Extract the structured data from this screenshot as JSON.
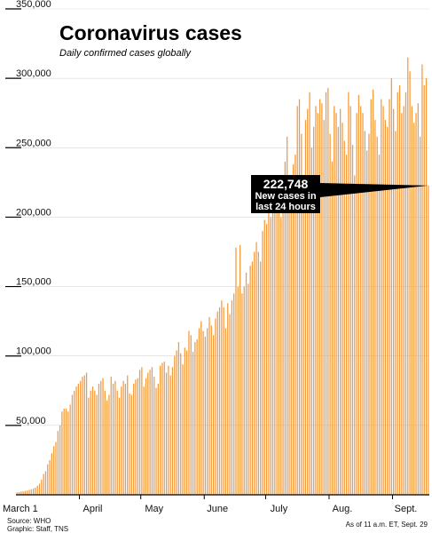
{
  "colors": {
    "bar": "#f59a3c",
    "axis": "#000000",
    "callout_bg": "#000000"
  },
  "chart_data": {
    "type": "bar",
    "title": "Coronavirus cases",
    "subtitle": "Daily confirmed cases globally",
    "ylim": [
      0,
      350000
    ],
    "y_ticks": [
      {
        "value": 50000,
        "label": "50,000"
      },
      {
        "value": 100000,
        "label": "100,000"
      },
      {
        "value": 150000,
        "label": "150,000"
      },
      {
        "value": 200000,
        "label": "200,000"
      },
      {
        "value": 250000,
        "label": "250,000"
      },
      {
        "value": 300000,
        "label": "300,000"
      },
      {
        "value": 350000,
        "label": "350,000"
      }
    ],
    "x_ticks": [
      {
        "day_index": 0,
        "label": "March 1"
      },
      {
        "day_index": 31,
        "label": "April"
      },
      {
        "day_index": 61,
        "label": "May"
      },
      {
        "day_index": 92,
        "label": "June"
      },
      {
        "day_index": 122,
        "label": "July"
      },
      {
        "day_index": 153,
        "label": "Aug."
      },
      {
        "day_index": 184,
        "label": "Sept."
      }
    ],
    "values": [
      1800,
      2000,
      2300,
      2500,
      2800,
      3000,
      3500,
      4000,
      4500,
      5200,
      6500,
      8000,
      11000,
      15000,
      17000,
      22000,
      25000,
      30000,
      35000,
      38000,
      46000,
      50000,
      60000,
      62000,
      62000,
      60000,
      65000,
      72000,
      75000,
      78000,
      80000,
      82000,
      85000,
      86000,
      88000,
      70000,
      75000,
      78000,
      75000,
      72000,
      80000,
      82000,
      84000,
      75000,
      68000,
      72000,
      85000,
      80000,
      82000,
      75000,
      70000,
      78000,
      82000,
      80000,
      86000,
      73000,
      72000,
      80000,
      83000,
      84000,
      90000,
      92000,
      78000,
      84000,
      88000,
      90000,
      92000,
      85000,
      77000,
      80000,
      93000,
      95000,
      96000,
      88000,
      93000,
      86000,
      92000,
      100000,
      104000,
      110000,
      102000,
      94000,
      106000,
      104000,
      118000,
      115000,
      103000,
      110000,
      112000,
      120000,
      125000,
      118000,
      114000,
      120000,
      128000,
      122000,
      115000,
      127000,
      132000,
      135000,
      140000,
      135000,
      120000,
      138000,
      130000,
      140000,
      145000,
      178000,
      150000,
      180000,
      145000,
      150000,
      160000,
      152000,
      165000,
      168000,
      175000,
      182000,
      175000,
      168000,
      190000,
      198000,
      195000,
      205000,
      200000,
      215000,
      220000,
      225000,
      210000,
      200000,
      230000,
      240000,
      258000,
      220000,
      230000,
      238000,
      245000,
      280000,
      285000,
      260000,
      210000,
      270000,
      278000,
      290000,
      250000,
      265000,
      280000,
      275000,
      285000,
      282000,
      270000,
      290000,
      293000,
      260000,
      240000,
      280000,
      275000,
      265000,
      278000,
      268000,
      255000,
      245000,
      290000,
      280000,
      252000,
      230000,
      275000,
      288000,
      280000,
      275000,
      262000,
      248000,
      260000,
      285000,
      292000,
      270000,
      258000,
      245000,
      285000,
      280000,
      270000,
      265000,
      285000,
      300000,
      278000,
      262000,
      290000,
      295000,
      275000,
      280000,
      290000,
      315000,
      305000,
      280000,
      268000,
      275000,
      282000,
      258000,
      310000,
      295000,
      300000,
      222748
    ],
    "annotation": {
      "value_label": "222,748",
      "text_line1": "New cases in",
      "text_line2": "last 24 hours"
    }
  },
  "footer": {
    "source": "Source: WHO",
    "graphic": "Graphic: Staff, TNS",
    "as_of": "As of 11 a.m. ET, Sept. 29"
  }
}
